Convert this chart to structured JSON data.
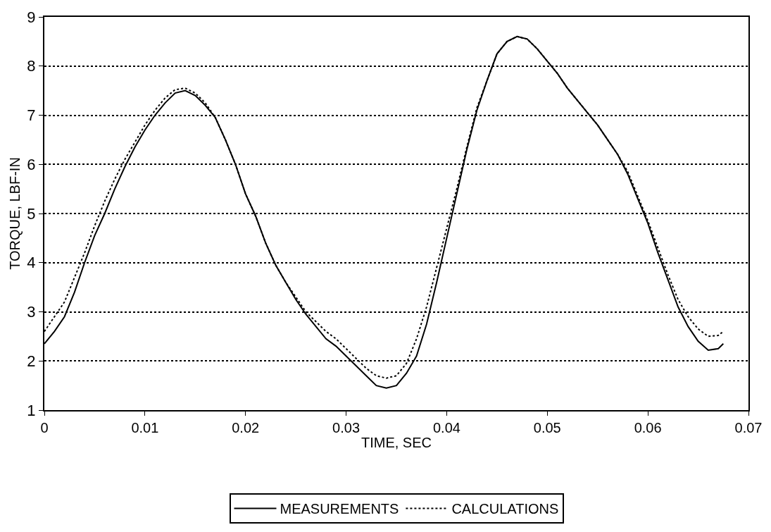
{
  "chart_data": {
    "type": "line",
    "xlabel": "TIME, SEC",
    "ylabel": "TORQUE, LBF-IN",
    "x": [
      0,
      0.001,
      0.002,
      0.003,
      0.004,
      0.005,
      0.006,
      0.007,
      0.008,
      0.009,
      0.01,
      0.011,
      0.012,
      0.013,
      0.014,
      0.015,
      0.016,
      0.017,
      0.018,
      0.019,
      0.02,
      0.021,
      0.022,
      0.023,
      0.024,
      0.025,
      0.026,
      0.027,
      0.028,
      0.029,
      0.03,
      0.031,
      0.032,
      0.033,
      0.034,
      0.035,
      0.036,
      0.037,
      0.038,
      0.039,
      0.04,
      0.041,
      0.042,
      0.043,
      0.044,
      0.045,
      0.046,
      0.047,
      0.048,
      0.049,
      0.05,
      0.051,
      0.052,
      0.053,
      0.054,
      0.055,
      0.056,
      0.057,
      0.058,
      0.059,
      0.06,
      0.061,
      0.062,
      0.063,
      0.064,
      0.065,
      0.066,
      0.067,
      0.0675
    ],
    "series": [
      {
        "name": "MEASUREMENTS",
        "color": "#000000",
        "line_style": "solid",
        "values": [
          2.35,
          2.6,
          2.9,
          3.4,
          4.0,
          4.55,
          5.0,
          5.5,
          5.95,
          6.35,
          6.7,
          7.0,
          7.25,
          7.45,
          7.5,
          7.4,
          7.2,
          6.95,
          6.5,
          6.0,
          5.4,
          4.95,
          4.4,
          3.95,
          3.6,
          3.25,
          2.95,
          2.7,
          2.45,
          2.3,
          2.1,
          1.9,
          1.7,
          1.5,
          1.45,
          1.5,
          1.75,
          2.1,
          2.75,
          3.6,
          4.5,
          5.4,
          6.3,
          7.1,
          7.7,
          8.25,
          8.5,
          8.6,
          8.55,
          8.35,
          8.1,
          7.85,
          7.55,
          7.3,
          7.05,
          6.8,
          6.5,
          6.2,
          5.8,
          5.3,
          4.8,
          4.2,
          3.65,
          3.1,
          2.7,
          2.4,
          2.22,
          2.25,
          2.35
        ]
      },
      {
        "name": "CALCULATIONS",
        "color": "#000000",
        "line_style": "dotted",
        "values": [
          2.6,
          2.9,
          3.2,
          3.7,
          4.2,
          4.75,
          5.25,
          5.7,
          6.1,
          6.45,
          6.8,
          7.1,
          7.35,
          7.52,
          7.55,
          7.45,
          7.25,
          6.95,
          6.5,
          6.0,
          5.4,
          4.95,
          4.4,
          3.95,
          3.6,
          3.3,
          3.0,
          2.8,
          2.6,
          2.45,
          2.25,
          2.05,
          1.85,
          1.7,
          1.65,
          1.7,
          1.95,
          2.45,
          3.1,
          3.9,
          4.7,
          5.5,
          6.35,
          7.15,
          7.7,
          8.25,
          8.5,
          8.6,
          8.55,
          8.35,
          8.1,
          7.85,
          7.55,
          7.3,
          7.05,
          6.8,
          6.5,
          6.2,
          5.85,
          5.35,
          4.85,
          4.3,
          3.75,
          3.25,
          2.9,
          2.65,
          2.5,
          2.52,
          2.6
        ]
      }
    ],
    "xlim": [
      0,
      0.07
    ],
    "xticks": [
      {
        "value": 0,
        "label": "0"
      },
      0.01,
      0.02,
      0.03,
      0.04,
      0.05,
      0.06,
      0.07
    ],
    "ylim": [
      1,
      9
    ],
    "yticks": [
      1,
      2,
      3,
      4,
      5,
      6,
      7,
      8,
      9
    ],
    "grid": "y",
    "legend": "bottom",
    "marker": "none"
  }
}
